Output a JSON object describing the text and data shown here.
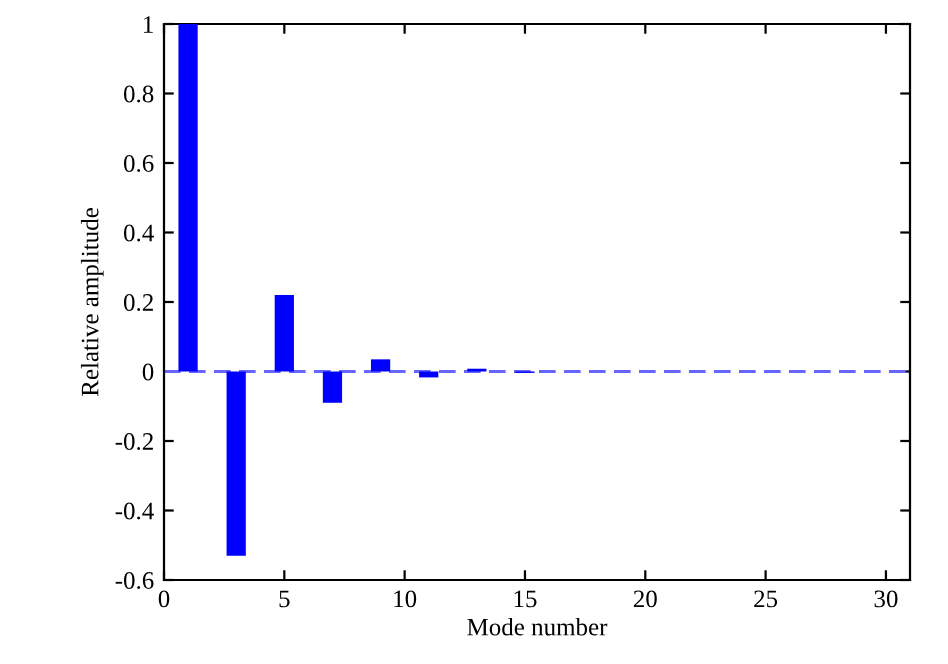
{
  "chart_data": {
    "type": "bar",
    "xlabel": "Mode number",
    "ylabel": "Relative amplitude",
    "x": [
      1,
      3,
      5,
      7,
      9,
      11,
      13,
      15
    ],
    "values": [
      1,
      -0.53,
      0.22,
      -0.09,
      0.035,
      -0.017,
      0.008,
      -0.004
    ],
    "color": "#0000ff",
    "xlim": [
      0,
      31
    ],
    "xticks": [
      0,
      5,
      10,
      15,
      20,
      25,
      30
    ],
    "ylim": [
      -0.6,
      1
    ],
    "yticks": [
      -0.6,
      -0.4,
      -0.2,
      0,
      0.2,
      0.4,
      0.6,
      0.8,
      1
    ],
    "ref_lines": [
      {
        "axis": "y",
        "value": 0,
        "color": "#6666ff",
        "line_style": "dashed"
      }
    ],
    "grid": false
  }
}
